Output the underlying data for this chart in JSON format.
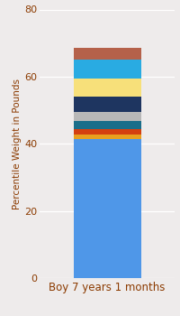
{
  "category": "Boy 7 years 1 months",
  "ylabel": "Percentile Weight in Pounds",
  "ylim": [
    0,
    80
  ],
  "yticks": [
    0,
    20,
    40,
    60,
    80
  ],
  "background_color": "#eeebeb",
  "segments": [
    {
      "value": 41.5,
      "color": "#4f97e8"
    },
    {
      "value": 1.2,
      "color": "#e8a020"
    },
    {
      "value": 1.8,
      "color": "#d44010"
    },
    {
      "value": 2.2,
      "color": "#1a6e8a"
    },
    {
      "value": 2.8,
      "color": "#b8b8b8"
    },
    {
      "value": 4.5,
      "color": "#1e3560"
    },
    {
      "value": 5.5,
      "color": "#f7e07a"
    },
    {
      "value": 5.5,
      "color": "#29abe2"
    },
    {
      "value": 3.5,
      "color": "#b5614a"
    }
  ],
  "bar_width": 0.5,
  "ylabel_fontsize": 7.5,
  "xlabel_fontsize": 8.5,
  "tick_fontsize": 8,
  "grid_color": "#ffffff",
  "text_color": "#8B3A00",
  "tick_color": "#cccccc"
}
